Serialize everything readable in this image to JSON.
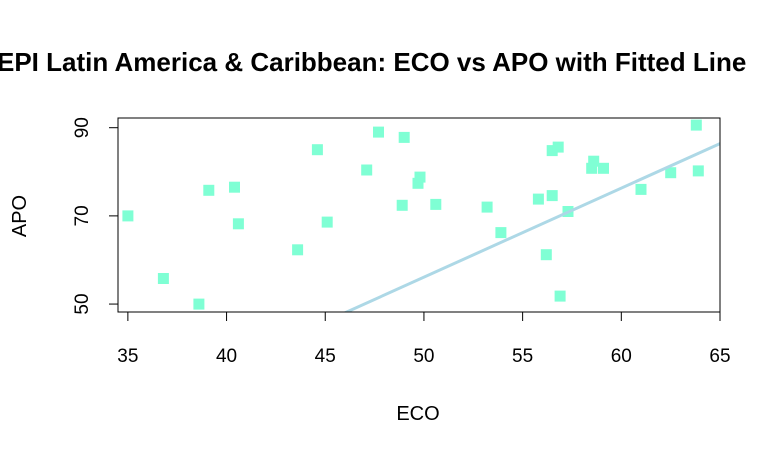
{
  "chart_data": {
    "type": "scatter",
    "title": "EPI Latin America & Caribbean: ECO vs APO with Fitted Line",
    "xlabel": "ECO",
    "ylabel": "APO",
    "xlim": [
      34.5,
      65
    ],
    "ylim": [
      48.2,
      92.2
    ],
    "xticks": [
      "35",
      "40",
      "45",
      "50",
      "55",
      "60",
      "65"
    ],
    "yticks": [
      "50",
      "70",
      "90"
    ],
    "points": [
      {
        "x": 35.0,
        "y": 70.0
      },
      {
        "x": 36.8,
        "y": 55.8
      },
      {
        "x": 38.6,
        "y": 50.0
      },
      {
        "x": 39.1,
        "y": 75.8
      },
      {
        "x": 40.4,
        "y": 76.5
      },
      {
        "x": 40.6,
        "y": 68.2
      },
      {
        "x": 43.6,
        "y": 62.3
      },
      {
        "x": 44.6,
        "y": 85.0
      },
      {
        "x": 45.1,
        "y": 68.6
      },
      {
        "x": 47.1,
        "y": 80.4
      },
      {
        "x": 47.7,
        "y": 89.0
      },
      {
        "x": 48.9,
        "y": 72.4
      },
      {
        "x": 49.0,
        "y": 87.8
      },
      {
        "x": 49.7,
        "y": 77.4
      },
      {
        "x": 49.8,
        "y": 78.8
      },
      {
        "x": 50.6,
        "y": 72.6
      },
      {
        "x": 53.2,
        "y": 72.0
      },
      {
        "x": 53.9,
        "y": 66.2
      },
      {
        "x": 55.8,
        "y": 73.8
      },
      {
        "x": 56.2,
        "y": 61.2
      },
      {
        "x": 56.5,
        "y": 74.6
      },
      {
        "x": 56.5,
        "y": 84.8
      },
      {
        "x": 56.8,
        "y": 85.6
      },
      {
        "x": 56.9,
        "y": 51.8
      },
      {
        "x": 57.3,
        "y": 71.0
      },
      {
        "x": 58.5,
        "y": 80.8
      },
      {
        "x": 58.6,
        "y": 82.4
      },
      {
        "x": 59.1,
        "y": 80.8
      },
      {
        "x": 61.0,
        "y": 76.0
      },
      {
        "x": 62.5,
        "y": 79.8
      },
      {
        "x": 63.8,
        "y": 90.6
      },
      {
        "x": 63.9,
        "y": 80.2
      }
    ],
    "fit_line": {
      "intercept": -44.9,
      "slope": 2.02
    },
    "point_color": "#7FFFD4",
    "line_color": "#ADD8E6"
  }
}
